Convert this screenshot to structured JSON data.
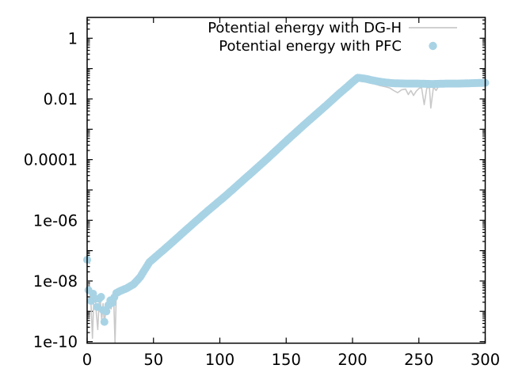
{
  "chart_data": {
    "type": "line",
    "title": "",
    "xlabel": "",
    "ylabel": "",
    "grid": false,
    "legend_position": "top-right-inside",
    "x_ticks": [
      0,
      50,
      100,
      150,
      200,
      250,
      300
    ],
    "xlim": [
      0,
      300
    ],
    "y_scale": "log",
    "ylim": [
      1e-10,
      5
    ],
    "y_tick_labels": [
      {
        "label": "1",
        "value": 1
      },
      {
        "label": "0.01",
        "value": 0.01
      },
      {
        "label": "0.0001",
        "value": 0.0001
      },
      {
        "label": "1e-06",
        "value": 1e-06
      },
      {
        "label": "1e-08",
        "value": 1e-08
      },
      {
        "label": "1e-10",
        "value": 1e-10
      }
    ],
    "colors": {
      "dgh_line": "#c9c9c9",
      "pfc_marker": "#a8d3e5",
      "axis": "#000000"
    },
    "legend": [
      {
        "label": "Potential energy with DG-H",
        "sample": "line",
        "color": "#c9c9c9"
      },
      {
        "label": "Potential energy with PFC",
        "sample": "filled-circle",
        "color": "#a8d3e5"
      }
    ],
    "series": [
      {
        "name": "Potential energy with DG-H",
        "render": "line",
        "color": "#c9c9c9",
        "points": [
          [
            0,
            1.2e-08
          ],
          [
            1,
            4e-09
          ],
          [
            2,
            7e-09
          ],
          [
            3,
            1.5e-09
          ],
          [
            4,
            1.3e-10
          ],
          [
            5,
            2.5e-09
          ],
          [
            6,
            3.5e-09
          ],
          [
            7,
            8e-10
          ],
          [
            8,
            2.5e-10
          ],
          [
            9,
            1.8e-09
          ],
          [
            10,
            2.2e-09
          ],
          [
            11,
            5e-10
          ],
          [
            12,
            1.8e-09
          ],
          [
            13,
            3.5e-10
          ],
          [
            14,
            1.1e-09
          ],
          [
            15,
            8e-10
          ],
          [
            16,
            1.5e-09
          ],
          [
            17,
            2.2e-09
          ],
          [
            18,
            1.2e-09
          ],
          [
            19,
            1.8e-09
          ],
          [
            20,
            2.8e-09
          ],
          [
            21,
            9e-11
          ],
          [
            22,
            3.8e-09
          ],
          [
            25,
            4.5e-09
          ],
          [
            30,
            5.5e-09
          ],
          [
            35,
            7.5e-09
          ],
          [
            40,
            1.3e-08
          ],
          [
            47,
            4.2e-08
          ],
          [
            60,
            1.3e-07
          ],
          [
            75,
            5e-07
          ],
          [
            90,
            1.9e-06
          ],
          [
            104,
            6.2e-06
          ],
          [
            120,
            2.6e-05
          ],
          [
            135,
            0.0001
          ],
          [
            152,
            0.00049
          ],
          [
            165,
            0.0016
          ],
          [
            180,
            0.006
          ],
          [
            190,
            0.015
          ],
          [
            196,
            0.024
          ],
          [
            200,
            0.033
          ],
          [
            204,
            0.045
          ],
          [
            210,
            0.04
          ],
          [
            215,
            0.033
          ],
          [
            220,
            0.028
          ],
          [
            225,
            0.025
          ],
          [
            228,
            0.023
          ],
          [
            231,
            0.019
          ],
          [
            234,
            0.016
          ],
          [
            237,
            0.02
          ],
          [
            240,
            0.021
          ],
          [
            242,
            0.014
          ],
          [
            244,
            0.019
          ],
          [
            246,
            0.013
          ],
          [
            248,
            0.018
          ],
          [
            250,
            0.022
          ],
          [
            252,
            0.024
          ],
          [
            254,
            0.0065
          ],
          [
            256,
            0.023
          ],
          [
            258,
            0.024
          ],
          [
            259,
            0.005
          ],
          [
            261,
            0.025
          ],
          [
            263,
            0.019
          ],
          [
            265,
            0.027
          ],
          [
            270,
            0.03
          ],
          [
            280,
            0.031
          ],
          [
            290,
            0.032
          ],
          [
            300,
            0.033
          ]
        ]
      },
      {
        "name": "Potential energy with PFC",
        "render": "points",
        "color": "#a8d3e5",
        "marker_radius": 5,
        "scatter_points": [
          [
            0,
            5e-08
          ],
          [
            1,
            5e-09
          ],
          [
            3,
            2.2e-09
          ],
          [
            4.5,
            3.8e-09
          ],
          [
            6,
            2.6e-09
          ],
          [
            7.5,
            1.4e-09
          ],
          [
            9,
            2.6e-09
          ],
          [
            10.5,
            3e-09
          ],
          [
            12,
            1.1e-09
          ],
          [
            13,
            4.5e-10
          ],
          [
            14.5,
            1e-09
          ],
          [
            16,
            1.6e-09
          ],
          [
            17.5,
            2.3e-09
          ],
          [
            19,
            1.9e-09
          ],
          [
            20.5,
            2.9e-09
          ]
        ],
        "band_anchors": [
          [
            22,
            4e-09
          ],
          [
            25,
            4.7e-09
          ],
          [
            30,
            5.8e-09
          ],
          [
            35,
            7.8e-09
          ],
          [
            40,
            1.35e-08
          ],
          [
            47,
            4.2e-08
          ],
          [
            60,
            1.3e-07
          ],
          [
            75,
            5e-07
          ],
          [
            90,
            1.9e-06
          ],
          [
            104,
            6.2e-06
          ],
          [
            120,
            2.6e-05
          ],
          [
            135,
            0.0001
          ],
          [
            152,
            0.00049
          ],
          [
            165,
            0.0016
          ],
          [
            180,
            0.006
          ],
          [
            190,
            0.015
          ],
          [
            196,
            0.025
          ],
          [
            200,
            0.036
          ],
          [
            204,
            0.05
          ],
          [
            210,
            0.046
          ],
          [
            215,
            0.041
          ],
          [
            222,
            0.036
          ],
          [
            230,
            0.033
          ],
          [
            240,
            0.032
          ],
          [
            250,
            0.032
          ],
          [
            260,
            0.031
          ],
          [
            270,
            0.032
          ],
          [
            280,
            0.032
          ],
          [
            290,
            0.033
          ],
          [
            300,
            0.034
          ]
        ],
        "band_step": 1
      }
    ]
  }
}
